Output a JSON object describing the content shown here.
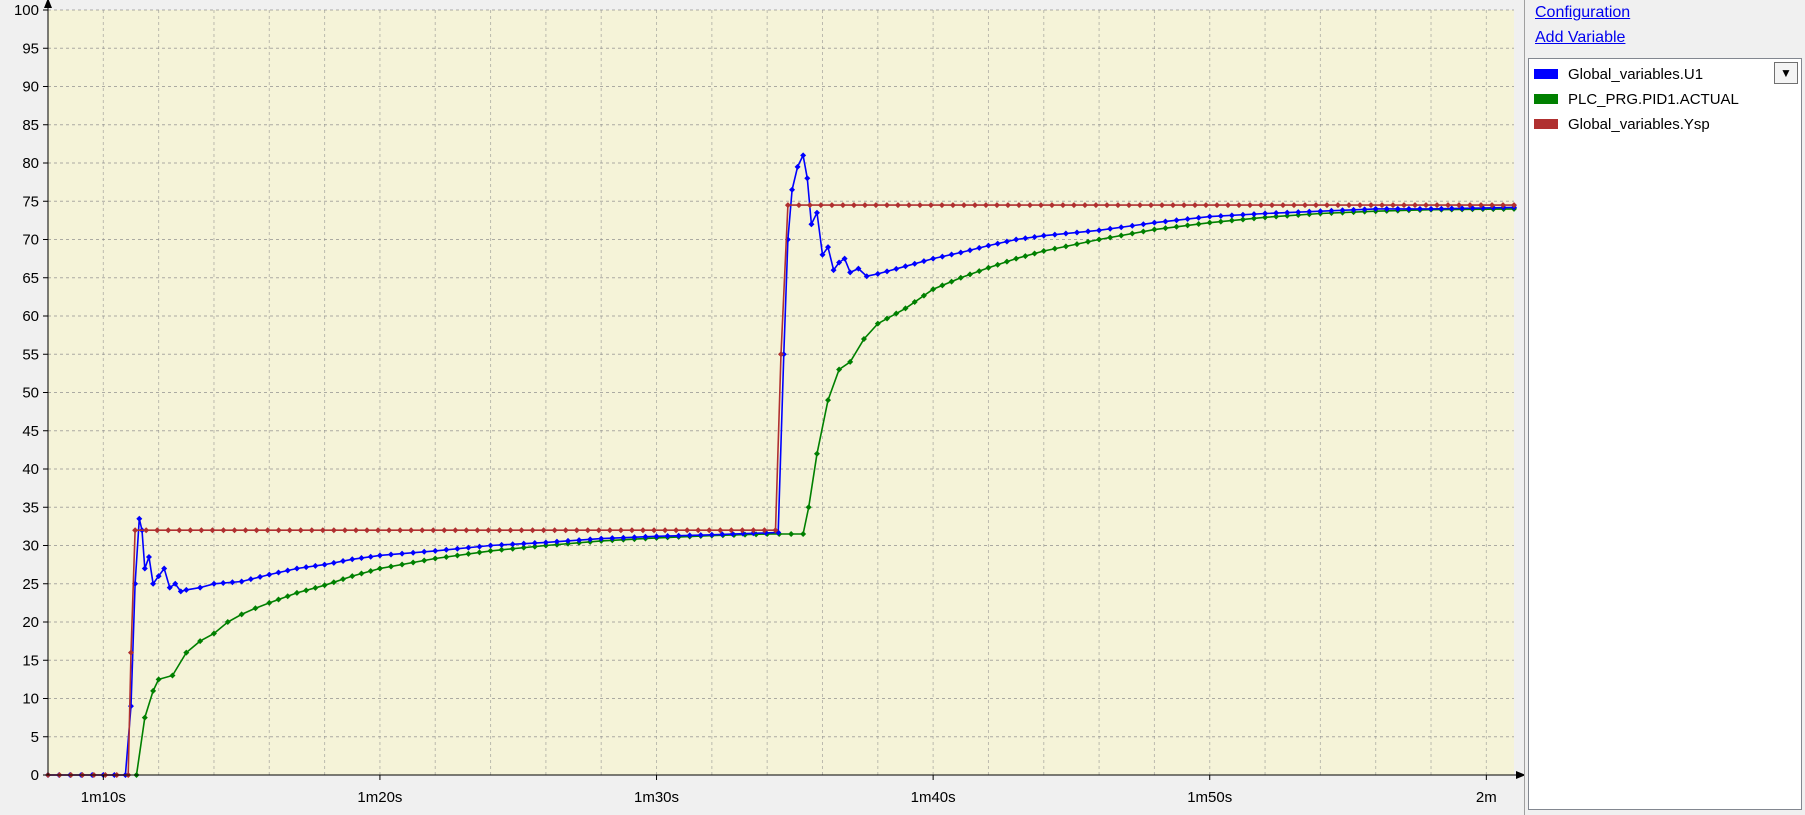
{
  "side_panel": {
    "configuration_link": "Configuration",
    "add_variable_link": "Add Variable",
    "dropdown_icon": "caret-down-icon"
  },
  "colors": {
    "plot_background": "#f5f3d8",
    "grid": "#8c8c8c",
    "series_u1": "#0000ff",
    "series_actual": "#008000",
    "series_ysp": "#b03030"
  },
  "chart_data": {
    "type": "line",
    "title": "",
    "xlabel": "",
    "ylabel": "",
    "ylim": [
      0,
      100
    ],
    "yticks": [
      0,
      5,
      10,
      15,
      20,
      25,
      30,
      35,
      40,
      45,
      50,
      55,
      60,
      65,
      70,
      75,
      80,
      85,
      90,
      95,
      100
    ],
    "xlim": [
      68,
      121
    ],
    "xticks": [
      {
        "value": 70,
        "label": "1m10s"
      },
      {
        "value": 80,
        "label": "1m20s"
      },
      {
        "value": 90,
        "label": "1m30s"
      },
      {
        "value": 100,
        "label": "1m40s"
      },
      {
        "value": 110,
        "label": "1m50s"
      },
      {
        "value": 120,
        "label": "2m"
      }
    ],
    "grid": true,
    "legend_position": "right-panel",
    "series": [
      {
        "name": "Global_variables.U1",
        "color": "#0000ff",
        "points": [
          [
            68,
            0
          ],
          [
            70.8,
            0
          ],
          [
            71.0,
            9
          ],
          [
            71.15,
            25
          ],
          [
            71.3,
            33.5
          ],
          [
            71.4,
            32
          ],
          [
            71.5,
            27
          ],
          [
            71.65,
            28.5
          ],
          [
            71.8,
            25
          ],
          [
            72.0,
            26
          ],
          [
            72.2,
            27
          ],
          [
            72.4,
            24.5
          ],
          [
            72.6,
            25
          ],
          [
            72.8,
            24
          ],
          [
            73.0,
            24.2
          ],
          [
            73.5,
            24.5
          ],
          [
            74,
            25
          ],
          [
            75,
            25.3
          ],
          [
            76,
            26.2
          ],
          [
            77,
            27
          ],
          [
            78,
            27.5
          ],
          [
            79,
            28.2
          ],
          [
            80,
            28.7
          ],
          [
            82,
            29.3
          ],
          [
            84,
            30
          ],
          [
            86,
            30.4
          ],
          [
            88,
            30.9
          ],
          [
            90,
            31.2
          ],
          [
            92,
            31.4
          ],
          [
            93.5,
            31.6
          ],
          [
            94.4,
            31.7
          ],
          [
            94.6,
            55
          ],
          [
            94.75,
            70
          ],
          [
            94.9,
            76.5
          ],
          [
            95.1,
            79.5
          ],
          [
            95.3,
            81
          ],
          [
            95.45,
            78
          ],
          [
            95.6,
            72
          ],
          [
            95.8,
            73.5
          ],
          [
            96.0,
            68
          ],
          [
            96.2,
            69
          ],
          [
            96.4,
            66
          ],
          [
            96.6,
            67
          ],
          [
            96.8,
            67.5
          ],
          [
            97.0,
            65.7
          ],
          [
            97.3,
            66.2
          ],
          [
            97.6,
            65.2
          ],
          [
            98,
            65.5
          ],
          [
            99,
            66.5
          ],
          [
            100,
            67.5
          ],
          [
            101,
            68.3
          ],
          [
            102,
            69.2
          ],
          [
            103,
            70
          ],
          [
            104,
            70.5
          ],
          [
            106,
            71.2
          ],
          [
            108,
            72.2
          ],
          [
            110,
            73
          ],
          [
            112,
            73.4
          ],
          [
            114,
            73.7
          ],
          [
            116,
            74
          ],
          [
            118,
            74
          ],
          [
            121,
            74.2
          ]
        ]
      },
      {
        "name": "PLC_PRG.PID1.ACTUAL",
        "color": "#008000",
        "points": [
          [
            71.2,
            0
          ],
          [
            71.5,
            7.5
          ],
          [
            71.8,
            11
          ],
          [
            72.0,
            12.5
          ],
          [
            72.5,
            13
          ],
          [
            73.0,
            16
          ],
          [
            73.5,
            17.5
          ],
          [
            74.0,
            18.5
          ],
          [
            74.5,
            20
          ],
          [
            75.0,
            21
          ],
          [
            75.5,
            21.8
          ],
          [
            76,
            22.5
          ],
          [
            77,
            23.8
          ],
          [
            78,
            24.8
          ],
          [
            79,
            26
          ],
          [
            80,
            27
          ],
          [
            82,
            28.3
          ],
          [
            84,
            29.3
          ],
          [
            86,
            30
          ],
          [
            88,
            30.6
          ],
          [
            90,
            31
          ],
          [
            92,
            31.3
          ],
          [
            94,
            31.5
          ],
          [
            95.3,
            31.5
          ],
          [
            95.5,
            35
          ],
          [
            95.8,
            42
          ],
          [
            96.2,
            49
          ],
          [
            96.6,
            53
          ],
          [
            97.0,
            54
          ],
          [
            97.5,
            57
          ],
          [
            98,
            59
          ],
          [
            99,
            61
          ],
          [
            100,
            63.5
          ],
          [
            101,
            65
          ],
          [
            102,
            66.3
          ],
          [
            103,
            67.5
          ],
          [
            104,
            68.5
          ],
          [
            106,
            70
          ],
          [
            108,
            71.3
          ],
          [
            110,
            72.2
          ],
          [
            112,
            72.9
          ],
          [
            114,
            73.4
          ],
          [
            116,
            73.7
          ],
          [
            118,
            73.9
          ],
          [
            121,
            74
          ]
        ]
      },
      {
        "name": "Global_variables.Ysp",
        "color": "#b03030",
        "points": [
          [
            68,
            0
          ],
          [
            70.9,
            0
          ],
          [
            71.0,
            16
          ],
          [
            71.15,
            32
          ],
          [
            94.3,
            32
          ],
          [
            94.5,
            55
          ],
          [
            94.75,
            74.5
          ],
          [
            121,
            74.5
          ]
        ]
      }
    ]
  }
}
